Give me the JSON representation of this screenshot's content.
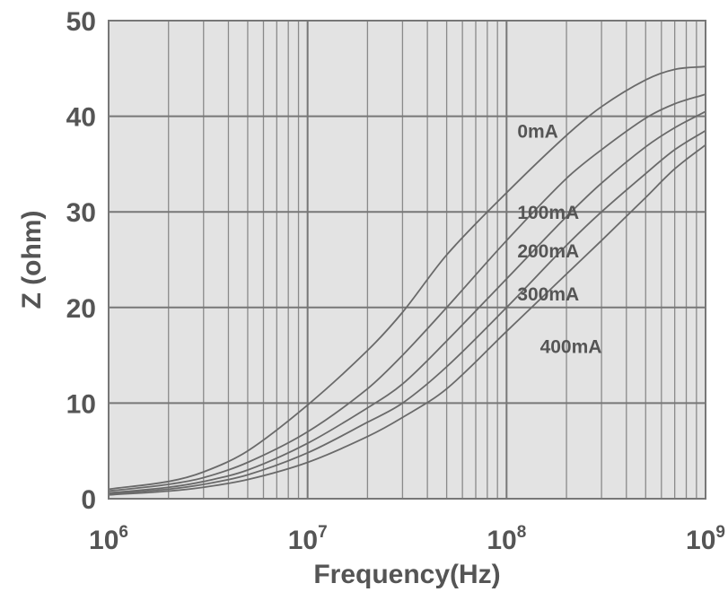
{
  "chart_data": {
    "type": "line",
    "xscale": "log",
    "xlim": [
      1000000,
      1000000000
    ],
    "ylim": [
      0,
      50
    ],
    "grid": true,
    "xlabel": "Frequency(Hz)",
    "ylabel": "Z (ohm)",
    "y_ticks": [
      "0",
      "10",
      "20",
      "30",
      "40",
      "50"
    ],
    "x_ticks": [
      {
        "base": "10",
        "exp": "6",
        "value": 1000000
      },
      {
        "base": "10",
        "exp": "7",
        "value": 10000000
      },
      {
        "base": "10",
        "exp": "8",
        "value": 100000000
      },
      {
        "base": "10",
        "exp": "9",
        "value": 1000000000
      }
    ],
    "series": [
      {
        "name": "0mA",
        "label_at": [
          100000000,
          38.5
        ],
        "points": [
          [
            1000000,
            1.0
          ],
          [
            2000000,
            1.8
          ],
          [
            3000000,
            2.8
          ],
          [
            5000000,
            5.0
          ],
          [
            10000000,
            9.8
          ],
          [
            20000000,
            15.5
          ],
          [
            30000000,
            19.5
          ],
          [
            50000000,
            25.5
          ],
          [
            100000000,
            32.0
          ],
          [
            200000000,
            38.0
          ],
          [
            300000000,
            41.0
          ],
          [
            500000000,
            43.8
          ],
          [
            700000000,
            44.9
          ],
          [
            1000000000,
            45.2
          ]
        ]
      },
      {
        "name": "100mA",
        "label_at": [
          100000000,
          30.0
        ],
        "points": [
          [
            1000000,
            0.8
          ],
          [
            2000000,
            1.5
          ],
          [
            3000000,
            2.2
          ],
          [
            5000000,
            3.8
          ],
          [
            10000000,
            7.0
          ],
          [
            20000000,
            11.5
          ],
          [
            30000000,
            15.0
          ],
          [
            50000000,
            20.0
          ],
          [
            100000000,
            27.0
          ],
          [
            200000000,
            33.5
          ],
          [
            300000000,
            36.5
          ],
          [
            500000000,
            39.8
          ],
          [
            700000000,
            41.3
          ],
          [
            1000000000,
            42.3
          ]
        ]
      },
      {
        "name": "200mA",
        "label_at": [
          100000000,
          26.0
        ],
        "points": [
          [
            1000000,
            0.6
          ],
          [
            2000000,
            1.2
          ],
          [
            3000000,
            1.8
          ],
          [
            5000000,
            3.0
          ],
          [
            10000000,
            5.8
          ],
          [
            20000000,
            9.5
          ],
          [
            30000000,
            12.0
          ],
          [
            50000000,
            16.5
          ],
          [
            100000000,
            23.0
          ],
          [
            200000000,
            29.5
          ],
          [
            300000000,
            33.0
          ],
          [
            500000000,
            36.8
          ],
          [
            700000000,
            38.8
          ],
          [
            1000000000,
            40.5
          ]
        ]
      },
      {
        "name": "300mA",
        "label_at": [
          100000000,
          21.5
        ],
        "points": [
          [
            1000000,
            0.5
          ],
          [
            2000000,
            1.0
          ],
          [
            3000000,
            1.5
          ],
          [
            5000000,
            2.5
          ],
          [
            10000000,
            4.8
          ],
          [
            20000000,
            8.0
          ],
          [
            30000000,
            10.0
          ],
          [
            50000000,
            13.8
          ],
          [
            100000000,
            20.0
          ],
          [
            200000000,
            26.5
          ],
          [
            300000000,
            30.0
          ],
          [
            500000000,
            34.0
          ],
          [
            700000000,
            36.5
          ],
          [
            1000000000,
            38.5
          ]
        ]
      },
      {
        "name": "400mA",
        "label_at": [
          130000000,
          16.0
        ],
        "points": [
          [
            1000000,
            0.4
          ],
          [
            2000000,
            0.8
          ],
          [
            3000000,
            1.2
          ],
          [
            5000000,
            2.0
          ],
          [
            10000000,
            3.8
          ],
          [
            20000000,
            6.5
          ],
          [
            30000000,
            8.5
          ],
          [
            50000000,
            11.5
          ],
          [
            100000000,
            17.5
          ],
          [
            200000000,
            23.5
          ],
          [
            300000000,
            27.0
          ],
          [
            500000000,
            31.5
          ],
          [
            700000000,
            34.5
          ],
          [
            1000000000,
            37.0
          ]
        ]
      }
    ]
  }
}
